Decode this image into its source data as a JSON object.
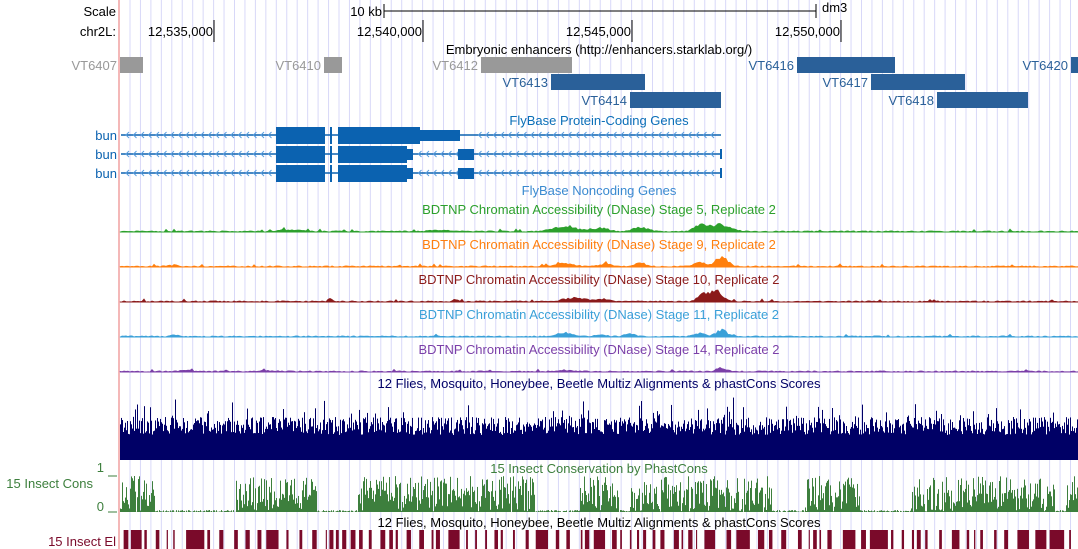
{
  "ruler": {
    "scale_label": "Scale",
    "scale_value": "10 kb",
    "assembly": "dm3",
    "chrom_label": "chr2L:",
    "ticks": [
      "12,535,000",
      "12,540,000",
      "12,545,000",
      "12,550,000"
    ]
  },
  "enhancers": {
    "title": "Embryonic enhancers (http://enhancers.starklab.org/)",
    "items": [
      "VT6407",
      "VT6410",
      "VT6412",
      "VT6413",
      "VT6414",
      "VT6416",
      "VT6417",
      "VT6418",
      "VT6420"
    ]
  },
  "genes": {
    "title": "FlyBase Protein-Coding Genes",
    "items": [
      "bun",
      "bun",
      "bun"
    ],
    "noncoding_title": "FlyBase Noncoding Genes"
  },
  "dnase": [
    {
      "title": "BDTNP Chromatin Accessibility (DNase) Stage 5, Replicate 2",
      "color": "#2ca02c"
    },
    {
      "title": "BDTNP Chromatin Accessibility (DNase) Stage 9, Replicate 2",
      "color": "#ff7f0e"
    },
    {
      "title": "BDTNP Chromatin Accessibility (DNase) Stage 10, Replicate 2",
      "color": "#8b1a1a"
    },
    {
      "title": "BDTNP Chromatin Accessibility (DNase) Stage 11, Replicate 2",
      "color": "#3aa0d8"
    },
    {
      "title": "BDTNP Chromatin Accessibility (DNase) Stage 14, Replicate 2",
      "color": "#7b3fa8"
    }
  ],
  "multiz": {
    "title": "12 Flies, Mosquito, Honeybee, Beetle Multiz Alignments & phastCons Scores",
    "color": "#000066"
  },
  "phastcons": {
    "title": "15 Insect Conservation by PhastCons",
    "side_label": "15 Insect Cons",
    "max": "1",
    "min": "0",
    "color": "#3d7f3d"
  },
  "elements": {
    "title": "12 Flies, Mosquito, Honeybee, Beetle Multiz Alignments & phastCons Scores",
    "side_label": "15 Insect El",
    "color": "#7a0a2a"
  }
}
